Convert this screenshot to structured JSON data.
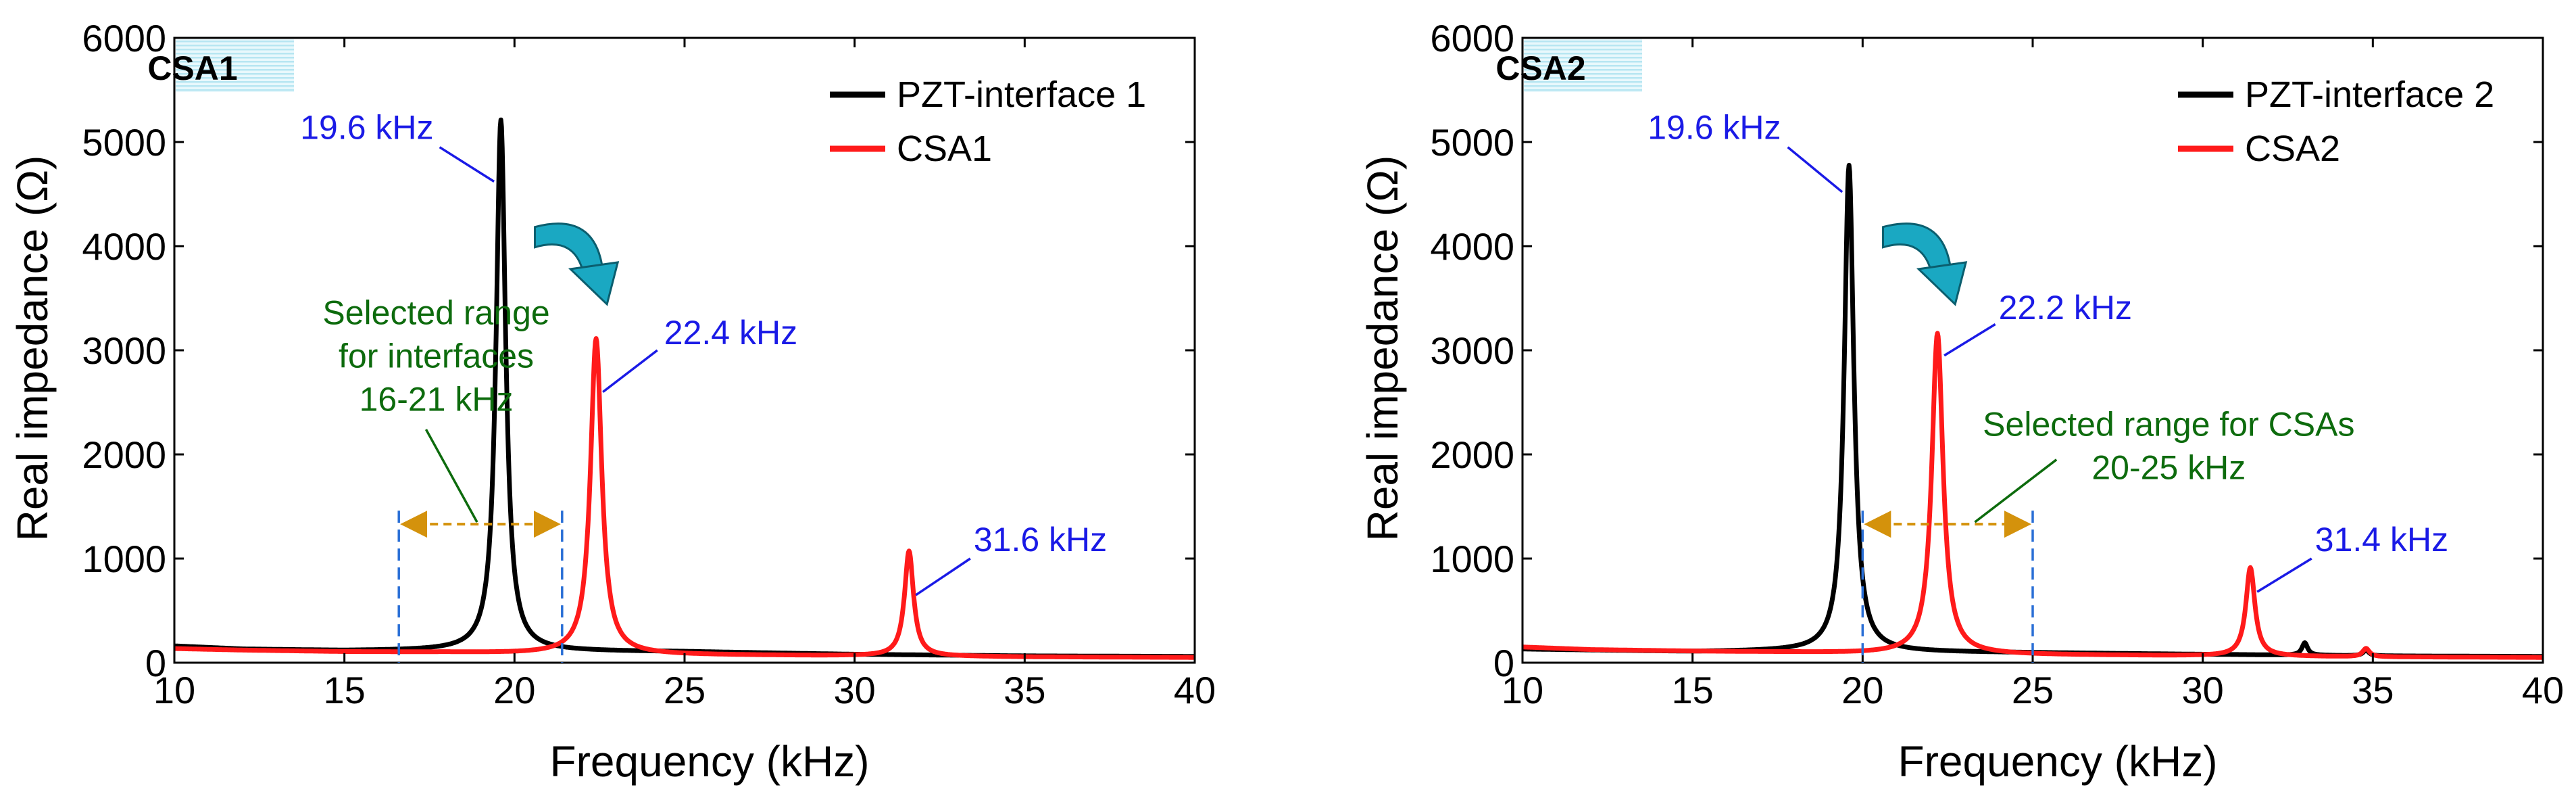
{
  "chart_data": [
    {
      "type": "line",
      "panel_tag": "CSA1",
      "xlabel": "Frequency (kHz)",
      "ylabel": "Real impedance (Ω)",
      "xlim": [
        10,
        40
      ],
      "ylim": [
        0,
        6000
      ],
      "xticks": [
        "10",
        "15",
        "20",
        "25",
        "30",
        "35",
        "40"
      ],
      "yticks": [
        "0",
        "1000",
        "2000",
        "3000",
        "4000",
        "5000",
        "6000"
      ],
      "legend_position": "top-right",
      "series": [
        {
          "name": "PZT-interface 1",
          "color": "#000000",
          "baseline": [
            [
              10,
              160
            ],
            [
              12,
              130
            ],
            [
              15,
              115
            ],
            [
              18,
              115
            ],
            [
              25,
              105
            ],
            [
              30,
              80
            ],
            [
              35,
              65
            ],
            [
              40,
              60
            ]
          ],
          "peaks": [
            {
              "f0": 19.6,
              "amp": 5100,
              "width": 0.17
            }
          ]
        },
        {
          "name": "CSA1",
          "color": "#ff1a1a",
          "baseline": [
            [
              10,
              135
            ],
            [
              12,
              120
            ],
            [
              15,
              105
            ],
            [
              18,
              100
            ],
            [
              20,
              90
            ],
            [
              25,
              75
            ],
            [
              30,
              65
            ],
            [
              35,
              55
            ],
            [
              40,
              50
            ]
          ],
          "peaks": [
            {
              "f0": 22.4,
              "amp": 3030,
              "width": 0.2
            },
            {
              "f0": 31.6,
              "amp": 1010,
              "width": 0.16
            }
          ]
        }
      ],
      "annotations": {
        "peak_labels": [
          {
            "text": "19.6 kHz",
            "peak_x": 19.6,
            "peak_y": 5100,
            "text_x": 13.7,
            "text_y": 5030,
            "anchor": "start",
            "leader_start": [
              17.8,
              4950
            ],
            "leader_end": [
              19.4,
              4620
            ]
          },
          {
            "text": "22.4 kHz",
            "peak_x": 22.4,
            "peak_y": 3030,
            "text_x": 24.4,
            "text_y": 3060,
            "anchor": "start",
            "leader_start": [
              24.2,
              3000
            ],
            "leader_end": [
              22.6,
              2600
            ]
          },
          {
            "text": "31.6 kHz",
            "peak_x": 31.6,
            "peak_y": 1010,
            "text_x": 33.5,
            "text_y": 1070,
            "anchor": "start",
            "leader_start": [
              33.4,
              1000
            ],
            "leader_end": [
              31.8,
              650
            ]
          }
        ],
        "range_label": [
          "Selected range",
          "for interfaces",
          "16-21 kHz"
        ],
        "range_label_pos": [
          17.7,
          3250
        ],
        "range_leader": [
          [
            17.4,
            2240
          ],
          [
            18.9,
            1350
          ]
        ],
        "range": [
          16.6,
          21.4
        ],
        "range_arrow_y": 1330,
        "shift_arrow": {
          "from": [
            20.6,
            4080
          ],
          "to": [
            22.6,
            3520
          ]
        }
      }
    },
    {
      "type": "line",
      "panel_tag": "CSA2",
      "xlabel": "Frequency (kHz)",
      "ylabel": "Real impedance (Ω)",
      "xlim": [
        10,
        40
      ],
      "ylim": [
        0,
        6000
      ],
      "xticks": [
        "10",
        "15",
        "20",
        "25",
        "30",
        "35",
        "40"
      ],
      "yticks": [
        "0",
        "1000",
        "2000",
        "3000",
        "4000",
        "5000",
        "6000"
      ],
      "legend_position": "top-right",
      "series": [
        {
          "name": "PZT-interface 2",
          "color": "#000000",
          "baseline": [
            [
              10,
              130
            ],
            [
              15,
              105
            ],
            [
              18,
              110
            ],
            [
              25,
              95
            ],
            [
              30,
              80
            ],
            [
              35,
              65
            ],
            [
              40,
              60
            ]
          ],
          "peaks": [
            {
              "f0": 19.6,
              "amp": 4670,
              "width": 0.17
            },
            {
              "f0": 33.0,
              "amp": 120,
              "width": 0.1
            },
            {
              "f0": 34.8,
              "amp": 55,
              "width": 0.1
            }
          ]
        },
        {
          "name": "CSA2",
          "color": "#ff1a1a",
          "baseline": [
            [
              10,
              150
            ],
            [
              12,
              125
            ],
            [
              15,
              110
            ],
            [
              18,
              100
            ],
            [
              20,
              90
            ],
            [
              25,
              75
            ],
            [
              30,
              65
            ],
            [
              35,
              55
            ],
            [
              40,
              50
            ]
          ],
          "peaks": [
            {
              "f0": 22.2,
              "amp": 3080,
              "width": 0.2
            },
            {
              "f0": 31.4,
              "amp": 850,
              "width": 0.16
            },
            {
              "f0": 34.8,
              "amp": 80,
              "width": 0.12
            }
          ]
        }
      ],
      "annotations": {
        "peak_labels": [
          {
            "text": "19.6 kHz",
            "peak_x": 19.6,
            "peak_y": 4670,
            "text_x": 17.6,
            "text_y": 5030,
            "anchor": "end",
            "leader_start": [
              17.8,
              4950
            ],
            "leader_end": [
              19.4,
              4520
            ]
          },
          {
            "text": "22.2 kHz",
            "peak_x": 22.2,
            "peak_y": 3080,
            "text_x": 24.0,
            "text_y": 3300,
            "anchor": "start",
            "leader_start": [
              23.9,
              3250
            ],
            "leader_end": [
              22.4,
              2950
            ]
          },
          {
            "text": "31.4 kHz",
            "peak_x": 31.4,
            "peak_y": 850,
            "text_x": 33.3,
            "text_y": 1070,
            "anchor": "start",
            "leader_start": [
              33.2,
              1000
            ],
            "leader_end": [
              31.6,
              680
            ]
          }
        ],
        "range_label": [
          "Selected range for CSAs",
          "20-25 kHz"
        ],
        "range_label_pos": [
          29.0,
          2180
        ],
        "range_leader": [
          [
            25.7,
            1950
          ],
          [
            23.3,
            1350
          ]
        ],
        "range": [
          20.0,
          25.0
        ],
        "range_arrow_y": 1330,
        "shift_arrow": {
          "from": [
            20.6,
            4080
          ],
          "to": [
            22.6,
            3520
          ]
        }
      }
    }
  ]
}
